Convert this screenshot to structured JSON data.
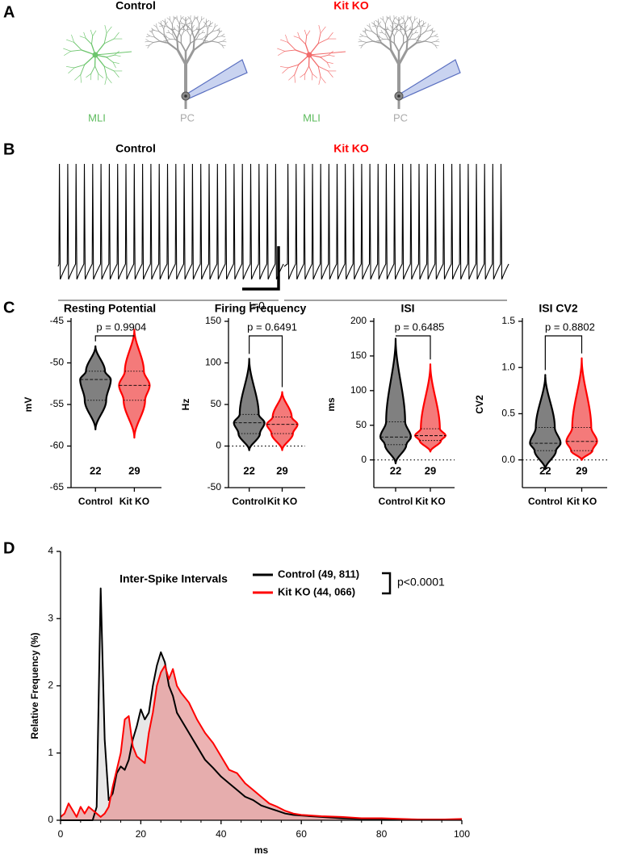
{
  "panel_labels": [
    "A",
    "B",
    "C",
    "D"
  ],
  "illustration": {
    "groups": [
      {
        "title": "Control",
        "cells": [
          "MLI",
          "PC"
        ]
      },
      {
        "title": "Kit KO",
        "cells": [
          "MLI",
          "PC"
        ]
      }
    ]
  },
  "traces": {
    "titles": [
      "Control",
      "Kit KO"
    ],
    "baseline_label": "I=0"
  },
  "chart_data": [
    {
      "type": "violin",
      "title": "Resting Potential",
      "y_label": "mV",
      "p_value": "p = 0.9904",
      "categories": [
        "Control",
        "Kit KO"
      ],
      "n": [
        22,
        29
      ],
      "colors": [
        "#808080",
        "#f47a7a"
      ],
      "edge_colors": [
        "#000000",
        "#ff0000"
      ],
      "stats": [
        {
          "min": -58,
          "q1": -54.5,
          "median": -52,
          "q3": -51,
          "max": -48
        },
        {
          "min": -59,
          "q1": -54.5,
          "median": -52.7,
          "q3": -51,
          "max": -46
        }
      ],
      "ylim": [
        -65,
        -45
      ],
      "yticks": [
        -65,
        -60,
        -55,
        -50,
        -45
      ]
    },
    {
      "type": "violin",
      "title": "Firing Frequency",
      "y_label": "Hz",
      "p_value": "p = 0.6491",
      "categories": [
        "Control",
        "Kit KO"
      ],
      "n": [
        22,
        29
      ],
      "colors": [
        "#808080",
        "#f47a7a"
      ],
      "edge_colors": [
        "#000000",
        "#ff0000"
      ],
      "stats": [
        {
          "min": -5,
          "q1": 15,
          "median": 28,
          "q3": 38,
          "max": 105
        },
        {
          "min": -5,
          "q1": 15,
          "median": 26,
          "q3": 35,
          "max": 65
        }
      ],
      "ylim": [
        -50,
        150
      ],
      "yticks": [
        -50,
        0,
        50,
        100,
        150
      ],
      "zero_line": true
    },
    {
      "type": "violin",
      "title": "ISI",
      "y_label": "ms",
      "p_value": "p = 0.6485",
      "categories": [
        "Control",
        "Kit KO"
      ],
      "n": [
        22,
        29
      ],
      "colors": [
        "#808080",
        "#f47a7a"
      ],
      "edge_colors": [
        "#000000",
        "#ff0000"
      ],
      "stats": [
        {
          "min": -5,
          "q1": 22,
          "median": 33,
          "q3": 55,
          "max": 175
        },
        {
          "min": 12,
          "q1": 28,
          "median": 35,
          "q3": 45,
          "max": 138
        }
      ],
      "ylim": [
        -40,
        200
      ],
      "yticks": [
        0,
        50,
        100,
        150,
        200
      ],
      "zero_line": true
    },
    {
      "type": "violin",
      "title": "ISI CV2",
      "y_label": "CV2",
      "p_value": "p = 0.8802",
      "categories": [
        "Control",
        "Kit KO"
      ],
      "n": [
        22,
        29
      ],
      "colors": [
        "#808080",
        "#f47a7a"
      ],
      "edge_colors": [
        "#000000",
        "#ff0000"
      ],
      "stats": [
        {
          "min": -0.1,
          "q1": 0.1,
          "median": 0.18,
          "q3": 0.35,
          "max": 0.92
        },
        {
          "min": 0,
          "q1": 0.1,
          "median": 0.2,
          "q3": 0.35,
          "max": 1.1
        }
      ],
      "ylim": [
        -0.3,
        1.5
      ],
      "yticks": [
        {
          "value": 0,
          "label": "0.0"
        },
        {
          "value": 0.5,
          "label": "0.5"
        },
        {
          "value": 1,
          "label": "1.0"
        },
        {
          "value": 1.5,
          "label": "1.5"
        }
      ],
      "zero_line": true
    },
    {
      "type": "area",
      "title": "Inter-Spike Intervals",
      "x_label": "ms",
      "y_label": "Relative Frequency (%)",
      "annotation": "p<0.0001",
      "x": [
        0,
        1,
        2,
        3,
        4,
        5,
        6,
        7,
        8,
        9,
        10,
        11,
        12,
        13,
        14,
        15,
        16,
        17,
        18,
        19,
        20,
        21,
        22,
        23,
        24,
        25,
        26,
        27,
        28,
        29,
        30,
        32,
        34,
        36,
        38,
        40,
        42,
        44,
        46,
        48,
        50,
        52,
        54,
        56,
        58,
        60,
        65,
        70,
        75,
        80,
        85,
        90,
        95,
        100
      ],
      "series": [
        {
          "name": "Control (49, 811)",
          "color": "#000000",
          "fill": "#e4e4e4",
          "values": [
            0,
            0,
            0,
            0,
            0,
            0,
            0,
            0,
            0,
            0.2,
            3.45,
            1.2,
            0.3,
            0.4,
            0.7,
            0.8,
            0.75,
            0.9,
            1.2,
            1.4,
            1.65,
            1.5,
            1.6,
            2.0,
            2.3,
            2.5,
            2.35,
            2.0,
            1.85,
            1.6,
            1.5,
            1.3,
            1.1,
            0.9,
            0.78,
            0.65,
            0.55,
            0.45,
            0.35,
            0.3,
            0.22,
            0.18,
            0.14,
            0.1,
            0.08,
            0.07,
            0.05,
            0.03,
            0.02,
            0.02,
            0.01,
            0.01,
            0.01,
            0.01
          ]
        },
        {
          "name": "Kit KO  (44, 066)",
          "color": "#ff0000",
          "fill": "#e59a9a",
          "values": [
            0.05,
            0.1,
            0.25,
            0.15,
            0.05,
            0.2,
            0.1,
            0.2,
            0.15,
            0.1,
            0.05,
            0.1,
            0.2,
            0.5,
            0.75,
            1.0,
            1.5,
            1.55,
            1.1,
            0.95,
            0.9,
            0.85,
            1.3,
            1.6,
            2.0,
            2.2,
            2.3,
            2.1,
            2.25,
            2.0,
            1.9,
            1.75,
            1.5,
            1.3,
            1.15,
            0.95,
            0.75,
            0.7,
            0.55,
            0.45,
            0.35,
            0.25,
            0.2,
            0.14,
            0.1,
            0.08,
            0.06,
            0.05,
            0.03,
            0.03,
            0.02,
            0.01,
            0.01,
            0.02
          ]
        }
      ],
      "xlim": [
        0,
        100
      ],
      "xticks": [
        0,
        20,
        40,
        60,
        80,
        100
      ],
      "ylim": [
        0,
        4
      ],
      "yticks": [
        0,
        1,
        2,
        3,
        4
      ]
    }
  ]
}
